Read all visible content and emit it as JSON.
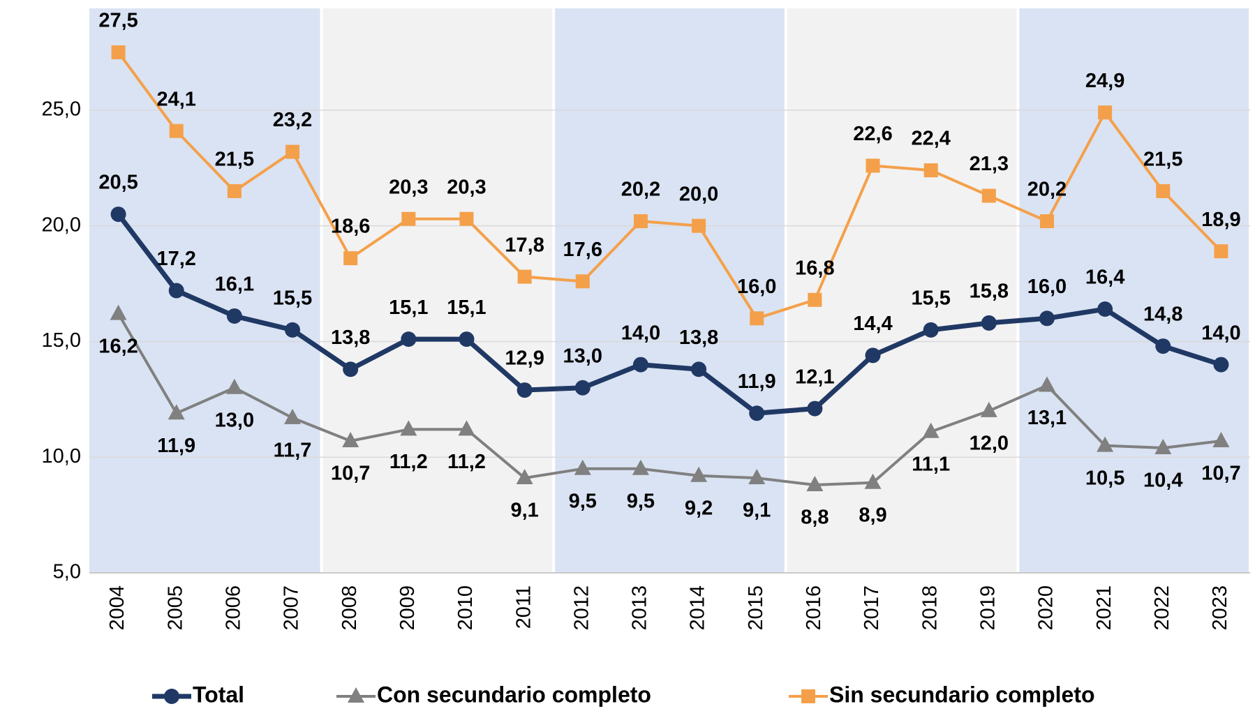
{
  "chart_data": {
    "type": "line",
    "categories": [
      "2004",
      "2005",
      "2006",
      "2007",
      "2008",
      "2009",
      "2010",
      "2011",
      "2012",
      "2013",
      "2014",
      "2015",
      "2016",
      "2017",
      "2018",
      "2019",
      "2020",
      "2021",
      "2022",
      "2023"
    ],
    "series": [
      {
        "name": "Total",
        "color": "#203864",
        "marker": "circle",
        "values": [
          20.5,
          17.2,
          16.1,
          15.5,
          13.8,
          15.1,
          15.1,
          12.9,
          13.0,
          14.0,
          13.8,
          11.9,
          12.1,
          14.4,
          15.5,
          15.8,
          16.0,
          16.4,
          14.8,
          14.0
        ],
        "value_labels": [
          "20,5",
          "17,2",
          "16,1",
          "15,5",
          "13,8",
          "15,1",
          "15,1",
          "12,9",
          "13,0",
          "14,0",
          "13,8",
          "11,9",
          "12,1",
          "14,4",
          "15,5",
          "15,8",
          "16,0",
          "16,4",
          "14,8",
          "14,0"
        ]
      },
      {
        "name": "Con secundario completo",
        "color": "#808080",
        "marker": "triangle",
        "values": [
          16.2,
          11.9,
          13.0,
          11.7,
          10.7,
          11.2,
          11.2,
          9.1,
          9.5,
          9.5,
          9.2,
          9.1,
          8.8,
          8.9,
          11.1,
          12.0,
          13.1,
          10.5,
          10.4,
          10.7
        ],
        "value_labels": [
          "16,2",
          "11,9",
          "13,0",
          "11,7",
          "10,7",
          "11,2",
          "11,2",
          "9,1",
          "9,5",
          "9,5",
          "9,2",
          "9,1",
          "8,8",
          "8,9",
          "11,1",
          "12,0",
          "13,1",
          "10,5",
          "10,4",
          "10,7"
        ]
      },
      {
        "name": "Sin secundario completo",
        "color": "#f4a04a",
        "marker": "square",
        "values": [
          27.5,
          24.1,
          21.5,
          23.2,
          18.6,
          20.3,
          20.3,
          17.8,
          17.6,
          20.2,
          20.0,
          16.0,
          16.8,
          22.6,
          22.4,
          21.3,
          20.2,
          24.9,
          21.5,
          18.9
        ],
        "value_labels": [
          "27,5",
          "24,1",
          "21,5",
          "23,2",
          "18,6",
          "20,3",
          "20,3",
          "17,8",
          "17,6",
          "20,2",
          "20,0",
          "16,0",
          "16,8",
          "22,6",
          "22,4",
          "21,3",
          "20,2",
          "24,9",
          "21,5",
          "18,9"
        ]
      }
    ],
    "ylim": [
      5,
      29.4
    ],
    "yticks": [
      {
        "value": 5,
        "label": "5,0"
      },
      {
        "value": 10,
        "label": "10,0"
      },
      {
        "value": 15,
        "label": "15,0"
      },
      {
        "value": 20,
        "label": "20,0"
      },
      {
        "value": 25,
        "label": "25,0"
      }
    ],
    "grid": true,
    "legend": "bottom"
  }
}
